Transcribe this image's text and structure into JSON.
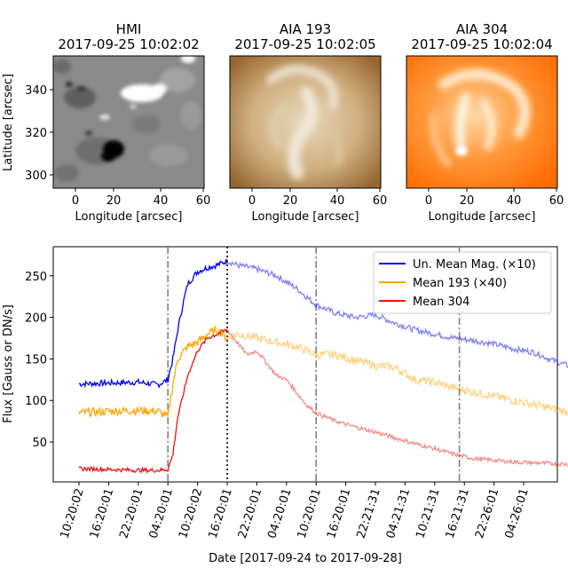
{
  "panels": [
    {
      "title": "HMI",
      "timestamp": "2017-09-25 10:02:02",
      "xlabel": "Longitude [arcsec]",
      "ylabel": "Latitude [arcsec]",
      "colormap": "grayscale magnetogram"
    },
    {
      "title": "AIA 193",
      "timestamp": "2017-09-25 10:02:05",
      "xlabel": "Longitude [arcsec]",
      "ylabel": "",
      "colormap": "sdoaia193 (brown/gold)"
    },
    {
      "title": "AIA 304",
      "timestamp": "2017-09-25 10:02:04",
      "xlabel": "Longitude [arcsec]",
      "ylabel": "",
      "colormap": "sdoaia304 (orange)"
    }
  ],
  "image_axes": {
    "xticks": [
      "0",
      "20",
      "40",
      "60"
    ],
    "yticks": [
      "300",
      "320",
      "340"
    ]
  },
  "colors": {
    "blue": "#0000ee",
    "orange": "#ffa500",
    "red": "#ee1111",
    "vline": "#808080"
  },
  "chart_data": {
    "type": "line",
    "xlabel": "Date [2017-09-24 to 2017-09-28]",
    "ylabel": "Flux [Gauss or DN/s]",
    "ylim": [
      2,
      285
    ],
    "yticks": [
      50,
      100,
      150,
      200,
      250
    ],
    "xticks": [
      "10:20:02",
      "16:20:01",
      "22:20:01",
      "04:20:01",
      "10:20:02",
      "16:20:01",
      "22:20:01",
      "04:20:01",
      "10:20:01",
      "16:20:01",
      "22:21:31",
      "04:21:31",
      "10:21:31",
      "16:21:31",
      "22:26:01",
      "04:26:01"
    ],
    "x_range_hours": [
      -3,
      99
    ],
    "legend_position": "top-right",
    "vertical_lines": [
      {
        "hour": 18,
        "style": "dash-dot"
      },
      {
        "hour": 30,
        "style": "dotted"
      },
      {
        "hour": 48,
        "style": "dash-dot"
      },
      {
        "hour": 77,
        "style": "dash-dot"
      },
      {
        "hour": 106,
        "style": "dash-dot"
      }
    ],
    "series": [
      {
        "name": "Un. Mean Mag. (×10)",
        "color": "#0000ee",
        "x": [
          0,
          6,
          12,
          16,
          18,
          19,
          20,
          21,
          22,
          24,
          26,
          28,
          30,
          32,
          36,
          40,
          44,
          48,
          52,
          56,
          60,
          64,
          68,
          72,
          76,
          80,
          84,
          88,
          92,
          96,
          100,
          104,
          106,
          108,
          110,
          112,
          114
        ],
        "y": [
          120,
          121,
          122,
          119,
          125,
          150,
          185,
          215,
          240,
          255,
          260,
          263,
          268,
          263,
          258,
          250,
          235,
          215,
          205,
          200,
          203,
          193,
          185,
          180,
          175,
          172,
          168,
          162,
          158,
          148,
          140,
          137,
          143,
          150,
          148,
          145,
          140
        ]
      },
      {
        "name": "Mean 193 (×40)",
        "color": "#ffa500",
        "x": [
          0,
          6,
          12,
          16,
          18,
          19,
          20,
          22,
          24,
          26,
          28,
          30,
          32,
          36,
          40,
          44,
          48,
          52,
          56,
          60,
          64,
          68,
          72,
          76,
          80,
          84,
          88,
          92,
          96,
          100,
          104,
          108,
          112,
          114
        ],
        "y": [
          85,
          87,
          88,
          87,
          80,
          120,
          150,
          165,
          170,
          180,
          185,
          175,
          180,
          175,
          170,
          165,
          155,
          155,
          148,
          142,
          140,
          125,
          122,
          115,
          110,
          105,
          100,
          95,
          90,
          85,
          82,
          85,
          88,
          90
        ]
      },
      {
        "name": "Mean 304",
        "color": "#ee1111",
        "x": [
          0,
          6,
          12,
          16,
          18,
          19,
          20,
          22,
          24,
          26,
          28,
          30,
          32,
          34,
          36,
          38,
          40,
          42,
          44,
          46,
          48,
          52,
          56,
          60,
          64,
          68,
          72,
          76,
          80,
          84,
          88,
          92,
          96,
          100,
          104,
          108,
          112,
          114
        ],
        "y": [
          18,
          17,
          16,
          16,
          17,
          35,
          80,
          130,
          160,
          175,
          180,
          185,
          170,
          155,
          160,
          145,
          130,
          125,
          110,
          95,
          85,
          75,
          68,
          62,
          55,
          48,
          42,
          35,
          30,
          28,
          26,
          25,
          24,
          23,
          24,
          25,
          27,
          28
        ]
      }
    ]
  }
}
